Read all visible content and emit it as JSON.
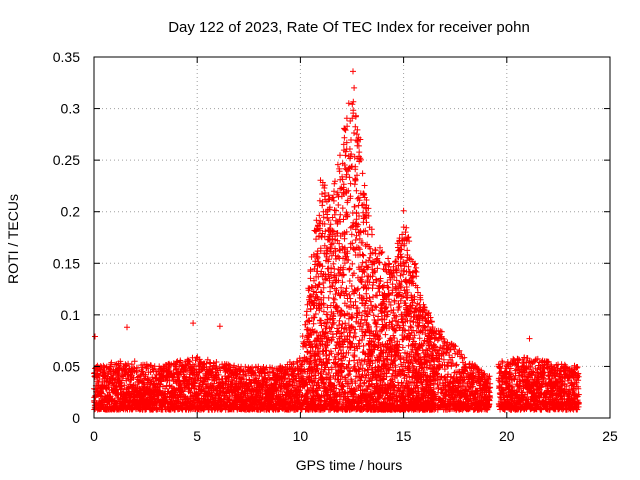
{
  "chart_data": {
    "type": "scatter",
    "title": "Day 122 of 2023, Rate Of TEC Index for receiver pohn",
    "xlabel": "GPS time / hours",
    "ylabel": "ROTI / TECUs",
    "xlim": [
      0,
      25
    ],
    "ylim": [
      0,
      0.35
    ],
    "xticks": [
      "0",
      "5",
      "10",
      "15",
      "20",
      "25"
    ],
    "yticks": [
      "0",
      "0.05",
      "0.1",
      "0.15",
      "0.2",
      "0.25",
      "0.3",
      "0.35"
    ],
    "grid": true,
    "marker": "+",
    "color": "#ff0000",
    "data_gap_hours": [
      19.2,
      19.6
    ],
    "envelope": {
      "x": [
        0,
        1,
        2,
        3,
        4,
        5,
        6,
        7,
        8,
        9,
        10,
        10.5,
        11,
        11.5,
        12,
        12.5,
        13,
        13.5,
        14,
        14.5,
        15,
        15.5,
        16,
        17,
        18,
        19.1,
        19.7,
        21,
        22,
        23.5
      ],
      "y": [
        0.05,
        0.055,
        0.055,
        0.05,
        0.055,
        0.06,
        0.055,
        0.05,
        0.05,
        0.05,
        0.06,
        0.15,
        0.24,
        0.21,
        0.27,
        0.33,
        0.24,
        0.18,
        0.16,
        0.15,
        0.2,
        0.16,
        0.11,
        0.08,
        0.06,
        0.04,
        0.055,
        0.06,
        0.055,
        0.05
      ]
    },
    "outliers": [
      {
        "x": 0.05,
        "y": 0.079
      },
      {
        "x": 1.6,
        "y": 0.088
      },
      {
        "x": 4.8,
        "y": 0.092
      },
      {
        "x": 6.1,
        "y": 0.089
      },
      {
        "x": 12.55,
        "y": 0.336
      },
      {
        "x": 12.6,
        "y": 0.32
      },
      {
        "x": 12.15,
        "y": 0.28
      },
      {
        "x": 12.9,
        "y": 0.27
      },
      {
        "x": 15.0,
        "y": 0.201
      },
      {
        "x": 21.1,
        "y": 0.077
      }
    ]
  }
}
